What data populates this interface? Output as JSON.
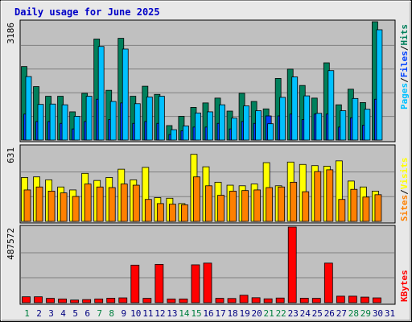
{
  "title": "Daily usage for June 2025",
  "colors": {
    "background": "#c0c0c0",
    "frame": "#e8e8e8",
    "title": "#0000c8",
    "hits": "#00805c",
    "files": "#0040ff",
    "pages": "#00c0ff",
    "visits": "#ffff00",
    "sites": "#ff8000",
    "kbytes": "#ff0000",
    "weekend_day": "#008040",
    "weekday": "#000080"
  },
  "chart_data": [
    {
      "type": "bar",
      "panel": "top",
      "ymax_label": "3186",
      "ymax": 3186,
      "right_label": [
        "Pages",
        "Files",
        "Hits"
      ],
      "categories": [
        "1",
        "2",
        "3",
        "4",
        "5",
        "6",
        "7",
        "8",
        "9",
        "10",
        "11",
        "12",
        "13",
        "14",
        "15",
        "16",
        "17",
        "18",
        "19",
        "20",
        "21",
        "22",
        "23",
        "24",
        "25",
        "26",
        "27",
        "28",
        "29",
        "30",
        "31"
      ],
      "series": [
        {
          "name": "Hits",
          "values": [
            1980,
            1440,
            1180,
            1180,
            760,
            1260,
            2720,
            1340,
            2740,
            1180,
            1450,
            1230,
            390,
            640,
            880,
            1000,
            1130,
            780,
            1260,
            1040,
            840,
            1660,
            1910,
            1470,
            1130,
            2080,
            950,
            1370,
            1010,
            3186,
            0
          ]
        },
        {
          "name": "Files",
          "values": [
            700,
            500,
            500,
            450,
            300,
            500,
            1100,
            550,
            1000,
            450,
            500,
            450,
            150,
            250,
            350,
            350,
            450,
            300,
            500,
            450,
            650,
            650,
            700,
            550,
            700,
            700,
            350,
            600,
            400,
            1100,
            0
          ]
        },
        {
          "name": "Pages",
          "values": [
            1710,
            960,
            970,
            950,
            640,
            1180,
            2520,
            1040,
            2450,
            980,
            1160,
            1180,
            280,
            380,
            730,
            760,
            950,
            590,
            920,
            790,
            440,
            1150,
            1700,
            1190,
            720,
            1870,
            790,
            1120,
            830,
            2970,
            0
          ]
        }
      ]
    },
    {
      "type": "bar",
      "panel": "middle",
      "ymax_label": "631",
      "ymax": 631,
      "right_label": [
        "Sites",
        "Visits"
      ],
      "categories": [
        "1",
        "2",
        "3",
        "4",
        "5",
        "6",
        "7",
        "8",
        "9",
        "10",
        "11",
        "12",
        "13",
        "14",
        "15",
        "16",
        "17",
        "18",
        "19",
        "20",
        "21",
        "22",
        "23",
        "24",
        "25",
        "26",
        "27",
        "28",
        "29",
        "30",
        "31"
      ],
      "series": [
        {
          "name": "Visits",
          "values": [
            370,
            375,
            350,
            290,
            265,
            405,
            345,
            370,
            440,
            350,
            455,
            200,
            195,
            150,
            565,
            460,
            330,
            305,
            300,
            315,
            495,
            300,
            500,
            480,
            470,
            465,
            510,
            340,
            290,
            255,
            0
          ]
        },
        {
          "name": "Sites",
          "values": [
            265,
            290,
            255,
            240,
            210,
            315,
            290,
            285,
            315,
            305,
            185,
            150,
            145,
            140,
            375,
            300,
            220,
            255,
            260,
            265,
            285,
            290,
            330,
            250,
            420,
            435,
            185,
            270,
            205,
            225,
            0
          ]
        }
      ]
    },
    {
      "type": "bar",
      "panel": "bottom",
      "ymax_label": "487572",
      "ymax": 487572,
      "right_label": [
        "KBytes"
      ],
      "categories": [
        "1",
        "2",
        "3",
        "4",
        "5",
        "6",
        "7",
        "8",
        "9",
        "10",
        "11",
        "12",
        "13",
        "14",
        "15",
        "16",
        "17",
        "18",
        "19",
        "20",
        "21",
        "22",
        "23",
        "24",
        "25",
        "26",
        "27",
        "28",
        "29",
        "30",
        "31"
      ],
      "series": [
        {
          "name": "KBytes",
          "values": [
            38000,
            38000,
            28000,
            24000,
            17000,
            20000,
            24000,
            29000,
            31000,
            242000,
            28000,
            247000,
            24000,
            24000,
            244000,
            255000,
            28000,
            27000,
            48000,
            32000,
            25000,
            30000,
            487572,
            29000,
            28000,
            255000,
            42000,
            42000,
            36000,
            31000,
            0
          ]
        }
      ]
    }
  ],
  "day_labels": [
    "1",
    "2",
    "3",
    "4",
    "5",
    "6",
    "7",
    "8",
    "9",
    "10",
    "11",
    "12",
    "13",
    "14",
    "15",
    "16",
    "17",
    "18",
    "19",
    "20",
    "21",
    "22",
    "23",
    "24",
    "25",
    "26",
    "27",
    "28",
    "29",
    "30",
    "31"
  ],
  "weekend_days": [
    "1",
    "7",
    "8",
    "14",
    "15",
    "21",
    "22",
    "28",
    "29"
  ]
}
